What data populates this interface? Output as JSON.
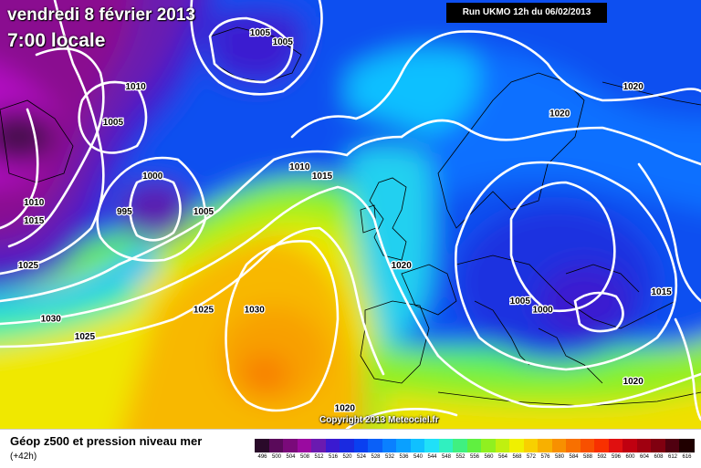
{
  "header": {
    "date": "vendredi 8 février 2013",
    "time": "7:00 locale",
    "run": "Run UKMO 12h du 06/02/2013"
  },
  "copyright": "Copyright 2013 Meteociel.fr",
  "legend": {
    "title": "Géop z500 et pression niveau mer",
    "subtitle": "(+42h)",
    "units_levels": [
      "496",
      "500",
      "504",
      "508",
      "512",
      "516",
      "520",
      "524",
      "528",
      "532",
      "536",
      "540",
      "544",
      "548",
      "552",
      "556",
      "560",
      "564",
      "568",
      "572",
      "576",
      "580",
      "584",
      "588",
      "592",
      "596",
      "600",
      "604",
      "608",
      "612",
      "616"
    ],
    "colors": [
      "#2a0a2a",
      "#5a0a5a",
      "#7a0a7a",
      "#9a0aa0",
      "#6a1ab0",
      "#3a1ad0",
      "#1a2ae0",
      "#0a40f0",
      "#0a60f8",
      "#0a80ff",
      "#0aa0ff",
      "#10c0ff",
      "#20e0f8",
      "#30f0c0",
      "#40f080",
      "#60f040",
      "#90f020",
      "#c0f010",
      "#f0f000",
      "#f8d000",
      "#f8b000",
      "#f89000",
      "#f87000",
      "#f85000",
      "#f83000",
      "#e01010",
      "#c00010",
      "#a00010",
      "#800010",
      "#500010",
      "#200000"
    ]
  },
  "map": {
    "isobar_labels": [
      {
        "text": "1005",
        "lon": -22,
        "lat": 71
      },
      {
        "text": "1005",
        "lon": -26,
        "lat": 72
      },
      {
        "text": "1010",
        "lon": -48,
        "lat": 66
      },
      {
        "text": "1005",
        "lon": -52,
        "lat": 62
      },
      {
        "text": "1000",
        "lon": -45,
        "lat": 56
      },
      {
        "text": "995",
        "lon": -50,
        "lat": 52
      },
      {
        "text": "1005",
        "lon": -36,
        "lat": 52
      },
      {
        "text": "1010",
        "lon": -19,
        "lat": 57
      },
      {
        "text": "1015",
        "lon": -15,
        "lat": 56
      },
      {
        "text": "1010",
        "lon": -66,
        "lat": 53
      },
      {
        "text": "1015",
        "lon": -66,
        "lat": 51
      },
      {
        "text": "1025",
        "lon": -67,
        "lat": 46
      },
      {
        "text": "1030",
        "lon": -63,
        "lat": 40
      },
      {
        "text": "1025",
        "lon": -57,
        "lat": 38
      },
      {
        "text": "1025",
        "lon": -36,
        "lat": 41
      },
      {
        "text": "1030",
        "lon": -27,
        "lat": 41
      },
      {
        "text": "1020",
        "lon": -1,
        "lat": 46
      },
      {
        "text": "1020",
        "lon": 27,
        "lat": 63
      },
      {
        "text": "1020",
        "lon": 40,
        "lat": 66
      },
      {
        "text": "1005",
        "lon": 20,
        "lat": 42
      },
      {
        "text": "1000",
        "lon": 24,
        "lat": 41
      },
      {
        "text": "1015",
        "lon": 45,
        "lat": 43
      },
      {
        "text": "1020",
        "lon": 40,
        "lat": 33
      },
      {
        "text": "1020",
        "lon": -11,
        "lat": 30
      }
    ]
  }
}
